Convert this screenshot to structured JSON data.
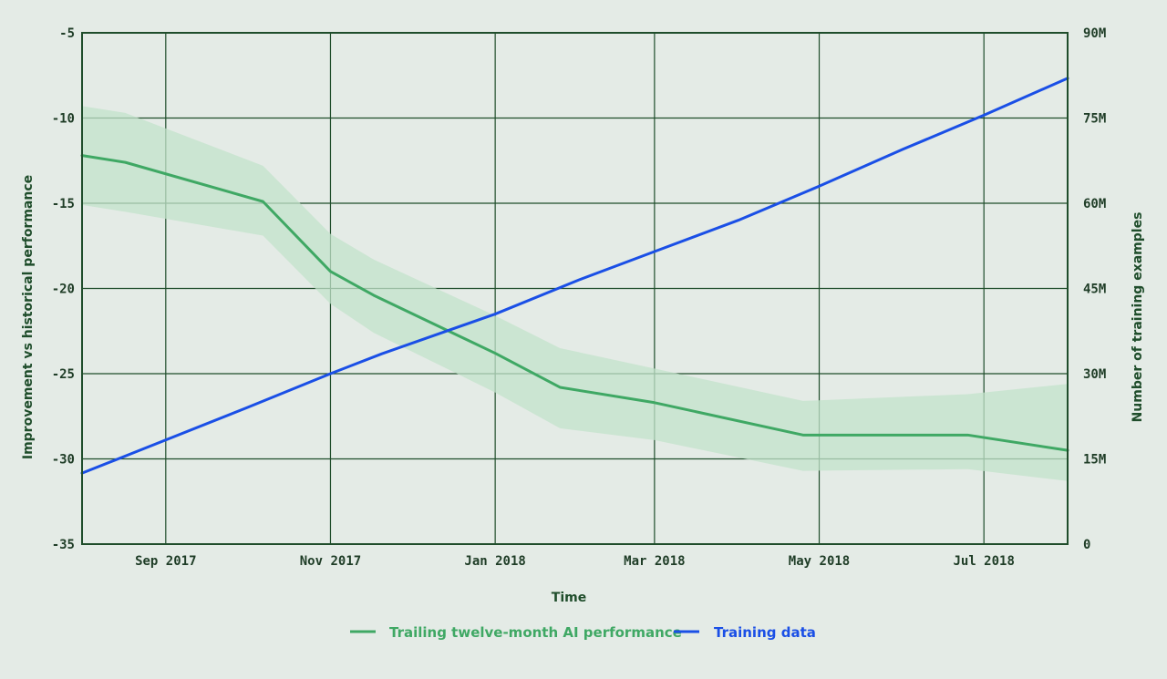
{
  "chart_data": {
    "type": "line",
    "title": "",
    "xlabel": "Time",
    "ylabel_left": "Improvement vs historical performance",
    "ylabel_right": "Number of training examples",
    "x_axis": {
      "type": "date",
      "range": [
        "2017-08-01",
        "2018-08-01"
      ],
      "ticks": [
        {
          "date": "2017-09-01",
          "label": "Sep 2017"
        },
        {
          "date": "2017-11-01",
          "label": "Nov 2017"
        },
        {
          "date": "2018-01-01",
          "label": "Jan 2018"
        },
        {
          "date": "2018-03-01",
          "label": "Mar 2018"
        },
        {
          "date": "2018-05-01",
          "label": "May 2018"
        },
        {
          "date": "2018-07-01",
          "label": "Jul 2018"
        }
      ]
    },
    "y_left": {
      "range": [
        -35,
        -5
      ],
      "ticks": [
        -5,
        -10,
        -15,
        -20,
        -25,
        -30,
        -35
      ],
      "tick_labels": [
        "-5",
        "-10",
        "-15",
        "-20",
        "-25",
        "-30",
        "-35"
      ]
    },
    "y_right": {
      "range": [
        0,
        90000000
      ],
      "ticks": [
        90000000,
        75000000,
        60000000,
        45000000,
        30000000,
        15000000,
        0
      ],
      "tick_labels": [
        "90M",
        "75M",
        "60M",
        "45M",
        "30M",
        "15M",
        "0"
      ]
    },
    "grid": true,
    "legend_position": "bottom-center",
    "series": [
      {
        "name": "Trailing twelve-month AI performance",
        "axis": "left",
        "color": "#3fa864",
        "band_color": "#c3e3cb",
        "points": [
          {
            "x": "2017-08-01",
            "y": -12.2,
            "lower": -15.1,
            "upper": -9.3
          },
          {
            "x": "2017-08-17",
            "y": -12.6,
            "lower": -15.5,
            "upper": -9.7
          },
          {
            "x": "2017-10-07",
            "y": -14.9,
            "lower": -16.9,
            "upper": -12.8
          },
          {
            "x": "2017-11-01",
            "y": -19.0,
            "lower": -20.9,
            "upper": -16.8
          },
          {
            "x": "2017-11-17",
            "y": -20.4,
            "lower": -22.6,
            "upper": -18.3
          },
          {
            "x": "2018-01-01",
            "y": -23.8,
            "lower": -26.1,
            "upper": -21.6
          },
          {
            "x": "2018-01-25",
            "y": -25.8,
            "lower": -28.2,
            "upper": -23.5
          },
          {
            "x": "2018-03-01",
            "y": -26.7,
            "lower": -28.9,
            "upper": -24.7
          },
          {
            "x": "2018-04-25",
            "y": -28.6,
            "lower": -30.7,
            "upper": -26.6
          },
          {
            "x": "2018-06-25",
            "y": -28.6,
            "lower": -30.6,
            "upper": -26.2
          },
          {
            "x": "2018-08-01",
            "y": -29.5,
            "lower": -31.3,
            "upper": -25.6
          }
        ]
      },
      {
        "name": "Training data",
        "axis": "right",
        "color": "#1a4fe6",
        "points": [
          {
            "x": "2017-08-01",
            "y": 12500000
          },
          {
            "x": "2017-08-17",
            "y": 15500000
          },
          {
            "x": "2017-10-01",
            "y": 24000000
          },
          {
            "x": "2017-11-01",
            "y": 30000000
          },
          {
            "x": "2017-11-20",
            "y": 33500000
          },
          {
            "x": "2018-01-01",
            "y": 40500000
          },
          {
            "x": "2018-02-01",
            "y": 46500000
          },
          {
            "x": "2018-03-01",
            "y": 51500000
          },
          {
            "x": "2018-04-01",
            "y": 57000000
          },
          {
            "x": "2018-05-01",
            "y": 63000000
          },
          {
            "x": "2018-06-01",
            "y": 69500000
          },
          {
            "x": "2018-07-01",
            "y": 75500000
          },
          {
            "x": "2018-08-01",
            "y": 82000000
          }
        ]
      }
    ]
  }
}
